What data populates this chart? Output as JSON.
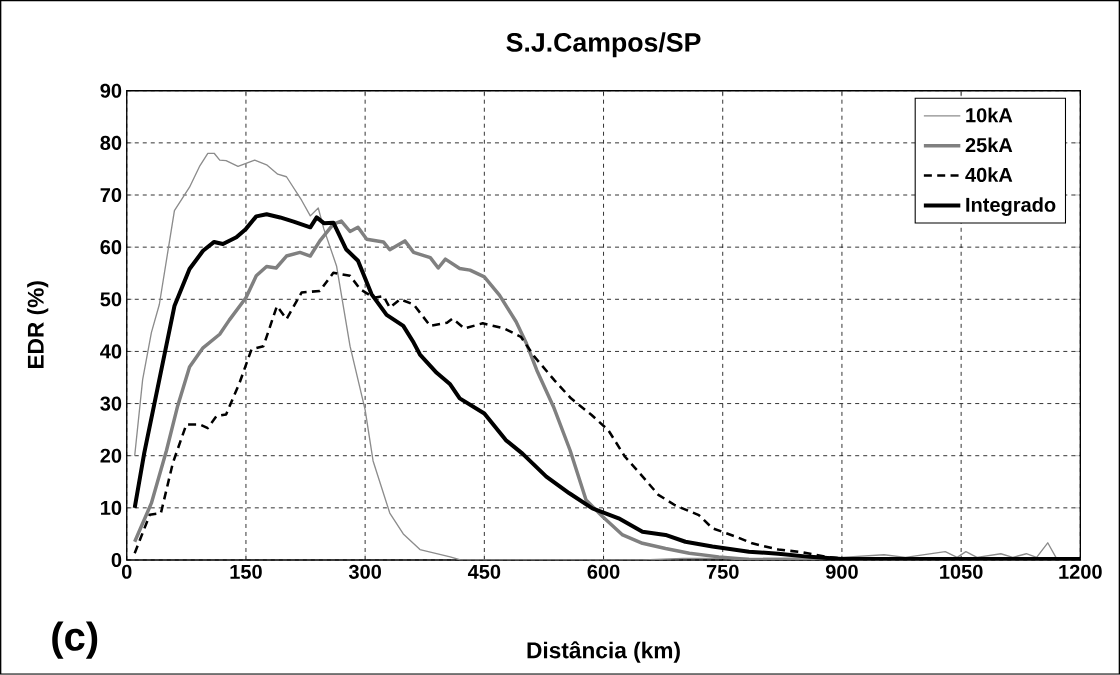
{
  "chart_data": {
    "type": "line",
    "title": "S.J.Campos/SP",
    "xlabel": "Distância (km)",
    "ylabel": "EDR (%)",
    "annotations": [
      "(c)"
    ],
    "xlim": [
      0,
      1200
    ],
    "xticks": [
      0,
      150,
      300,
      450,
      600,
      750,
      900,
      1050,
      1200
    ],
    "ylim": [
      0,
      90
    ],
    "yticks": [
      0,
      10,
      20,
      30,
      40,
      50,
      60,
      70,
      80,
      90
    ],
    "grid": true,
    "legend": "top right",
    "marker": "none",
    "series": [
      {
        "name": "10kA",
        "color": "#8c8c8c",
        "line_style": "solid",
        "x": [
          10,
          20,
          31,
          41,
          60,
          79,
          92,
          102,
          110,
          117,
          125,
          140,
          161,
          176,
          190,
          201,
          220,
          231,
          241,
          248,
          264,
          281,
          300,
          310,
          331,
          348,
          369,
          407,
          420,
          650,
          700,
          800,
          900,
          953,
          980,
          1030,
          1045,
          1056,
          1070,
          1100,
          1115,
          1132,
          1145,
          1159,
          1170,
          1200
        ],
        "values": [
          20,
          34.6,
          43.6,
          49,
          67,
          71.5,
          75.6,
          78,
          78,
          76.7,
          76.6,
          75.5,
          76.7,
          75.8,
          74,
          73.5,
          69,
          66,
          67.5,
          63.5,
          56.4,
          41,
          28.8,
          19,
          9,
          5,
          2,
          0.6,
          0,
          0,
          0.3,
          0.3,
          0.5,
          1,
          0.5,
          1.6,
          0.5,
          1.6,
          0.5,
          1.2,
          0.5,
          1.2,
          0.5,
          3.3,
          0.3,
          0.3
        ]
      },
      {
        "name": "25kA",
        "color": "#808080",
        "line_style": "solid",
        "x": [
          10,
          31,
          50,
          64,
          79,
          96,
          117,
          129,
          150,
          163,
          176,
          188,
          201,
          218,
          231,
          243,
          260,
          270,
          281,
          291,
          302,
          323,
          331,
          350,
          361,
          382,
          392,
          401,
          419,
          432,
          450,
          469,
          490,
          503,
          516,
          537,
          558,
          578,
          599,
          624,
          649,
          678,
          708,
          745,
          783,
          850,
          1200
        ],
        "values": [
          3.5,
          10.9,
          21,
          29.5,
          37,
          40.7,
          43.3,
          46,
          50.3,
          54.5,
          56.3,
          56,
          58.3,
          59,
          58.3,
          61.2,
          64.4,
          65,
          63,
          63.8,
          61.5,
          61,
          59.5,
          61.2,
          59,
          58,
          56,
          57.7,
          55.9,
          55.6,
          54.3,
          50.8,
          45.7,
          41.5,
          36.4,
          29.4,
          21,
          11.5,
          8.3,
          4.8,
          3.2,
          2.2,
          1.3,
          0.6,
          0.1,
          0,
          0
        ]
      },
      {
        "name": "40kA",
        "color": "#000000",
        "line_style": "dashed",
        "x": [
          10,
          29,
          43,
          58,
          75,
          92,
          102,
          113,
          125,
          142,
          157,
          172,
          189,
          201,
          220,
          243,
          260,
          281,
          294,
          311,
          323,
          331,
          344,
          361,
          382,
          403,
          410,
          425,
          448,
          475,
          496,
          513,
          538,
          559,
          585,
          606,
          627,
          644,
          669,
          690,
          720,
          737,
          766,
          787,
          820,
          850,
          880,
          900,
          1200
        ],
        "values": [
          1.3,
          8.7,
          9,
          18.6,
          26,
          26,
          25.3,
          27.6,
          27.9,
          34,
          40.4,
          41,
          48.7,
          46.2,
          51.3,
          51.6,
          55.1,
          54.5,
          51.9,
          50.3,
          50.6,
          48.4,
          50,
          49,
          44.9,
          45.5,
          46.3,
          44.4,
          45.4,
          44.4,
          42.8,
          39,
          34.5,
          31,
          27.8,
          24.9,
          19.8,
          16.9,
          12.5,
          10.5,
          8.6,
          6.1,
          4.5,
          3.2,
          2,
          1.5,
          0.6,
          0.3,
          0.2
        ]
      },
      {
        "name": "Integrado",
        "color": "#000000",
        "line_style": "solid",
        "x": [
          10,
          22,
          41,
          60,
          79,
          96,
          110,
          121,
          138,
          150,
          163,
          176,
          193,
          210,
          231,
          239,
          248,
          260,
          276,
          291,
          308,
          327,
          348,
          361,
          369,
          390,
          407,
          419,
          450,
          477,
          498,
          528,
          557,
          586,
          619,
          649,
          678,
          703,
          737,
          783,
          820,
          860,
          900,
          1200
        ],
        "values": [
          10,
          20.5,
          34.6,
          48.7,
          55.8,
          59.3,
          61,
          60.6,
          61.9,
          63.5,
          65.9,
          66.3,
          65.7,
          64.9,
          63.8,
          65.7,
          64.6,
          64.7,
          59.6,
          57.4,
          51,
          47,
          44.9,
          41.7,
          39.4,
          35.9,
          33.7,
          31,
          28.1,
          23,
          20.4,
          16,
          12.8,
          9.9,
          8,
          5.4,
          4.8,
          3.5,
          2.6,
          1.6,
          1.2,
          0.6,
          0.2,
          0.2
        ]
      }
    ]
  }
}
